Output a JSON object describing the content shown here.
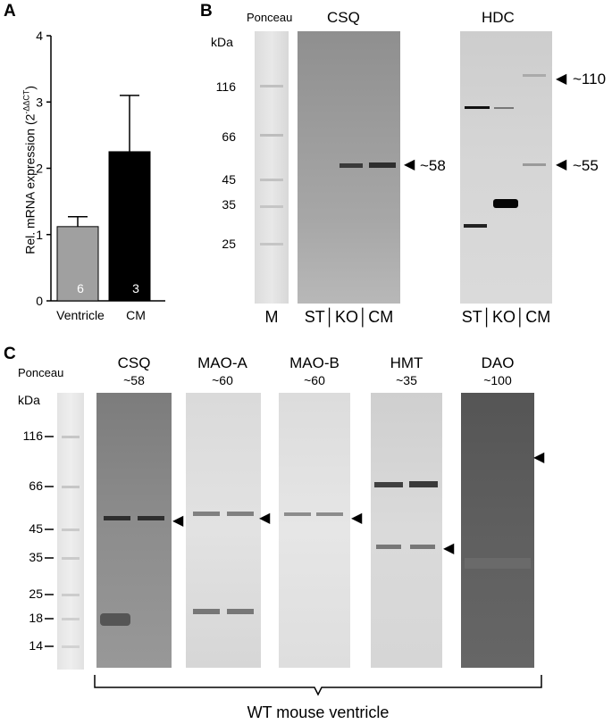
{
  "panels": {
    "a": "A",
    "b": "B",
    "c": "C"
  },
  "panel_a": {
    "ylabel": "Rel. mRNA expression (2",
    "ylabel_sup": "-ΔΔCT",
    "ylabel_close": ")",
    "n_labels": [
      "6",
      "3"
    ]
  },
  "chart_data": {
    "type": "bar",
    "categories": [
      "Ventricle",
      "CM"
    ],
    "values": [
      1.12,
      2.25
    ],
    "error": [
      0.15,
      0.85
    ],
    "colors": [
      "#a0a0a0",
      "#000000"
    ],
    "ylim": [
      0,
      4
    ],
    "yticks": [
      "0",
      "1",
      "2",
      "3",
      "4"
    ],
    "xlabel": "",
    "ylabel": "Rel. mRNA expression (2-ΔΔCT)"
  },
  "panel_b": {
    "ponceau": "Ponceau",
    "kda": "kDa",
    "markers": [
      "116",
      "66",
      "45",
      "35",
      "25"
    ],
    "marker_lane": "M",
    "csq": {
      "title": "CSQ",
      "band": "~58",
      "lanes": "ST│KO│CM"
    },
    "hdc": {
      "title": "HDC",
      "band_high": "~110",
      "band_mid": "~55",
      "lanes": "ST│KO│CM"
    }
  },
  "panel_c": {
    "ponceau": "Ponceau",
    "kda": "kDa",
    "markers": [
      "116",
      "66",
      "45",
      "35",
      "25",
      "18",
      "14"
    ],
    "blots": [
      {
        "name": "CSQ",
        "size": "~58"
      },
      {
        "name": "MAO-A",
        "size": "~60"
      },
      {
        "name": "MAO-B",
        "size": "~60"
      },
      {
        "name": "HMT",
        "size": "~35"
      },
      {
        "name": "DAO",
        "size": "~100"
      }
    ],
    "brace_label": "WT mouse ventricle"
  },
  "arrow_glyph": "◀"
}
